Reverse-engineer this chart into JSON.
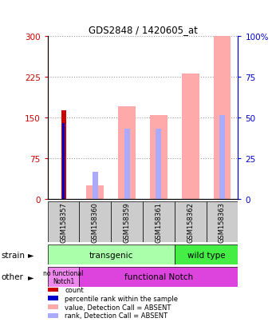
{
  "title": "GDS2848 / 1420605_at",
  "samples": [
    "GSM158357",
    "GSM158360",
    "GSM158359",
    "GSM158361",
    "GSM158362",
    "GSM158363"
  ],
  "count_values": [
    163,
    0,
    0,
    0,
    0,
    0
  ],
  "percentile_values": [
    140,
    0,
    0,
    0,
    0,
    0
  ],
  "value_absent": [
    0,
    25,
    170,
    155,
    230,
    300
  ],
  "rank_absent": [
    0,
    50,
    130,
    130,
    0,
    155
  ],
  "ylim_left": [
    0,
    300
  ],
  "yticks_left": [
    0,
    75,
    150,
    225,
    300
  ],
  "ylim_right": [
    0,
    100
  ],
  "yticks_right": [
    0,
    25,
    50,
    75,
    100
  ],
  "color_count": "#cc0000",
  "color_percentile": "#0000cc",
  "color_value_absent": "#ffaaaa",
  "color_rank_absent": "#aaaaff",
  "strain_transgenic_color": "#aaffaa",
  "strain_wildtype_color": "#44ee44",
  "other_nofunc_color": "#ee88ee",
  "other_func_color": "#dd44dd",
  "label_strain": "strain",
  "label_other": "other",
  "label_transgenic": "transgenic",
  "label_wildtype": "wild type",
  "label_nofunc": "no functional\nNotch1",
  "label_func": "functional Notch",
  "legend_items": [
    "count",
    "percentile rank within the sample",
    "value, Detection Call = ABSENT",
    "rank, Detection Call = ABSENT"
  ],
  "legend_colors": [
    "#cc0000",
    "#0000cc",
    "#ffaaaa",
    "#aaaaff"
  ]
}
